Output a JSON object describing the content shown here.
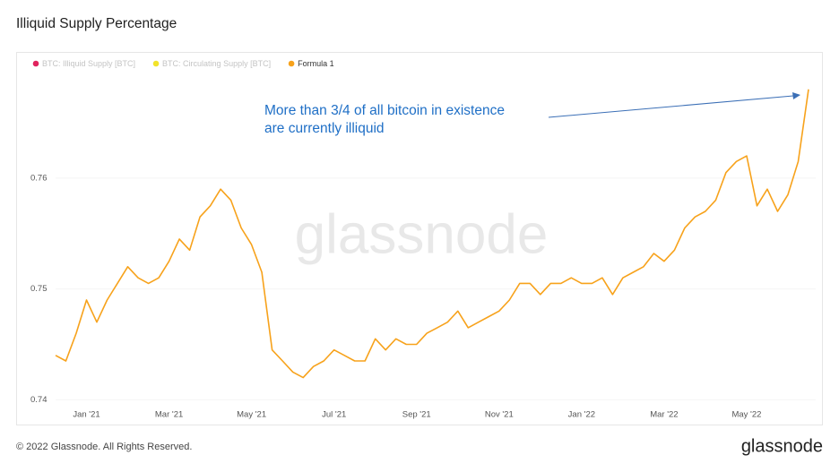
{
  "chart_data": {
    "type": "line",
    "title": "Illiquid Supply Percentage",
    "legend": [
      {
        "name": "BTC: Illiquid Supply [BTC]",
        "color": "#e0245e",
        "active": false
      },
      {
        "name": "BTC: Circulating Supply [BTC]",
        "color": "#f2e32b",
        "active": false
      },
      {
        "name": "Formula 1",
        "color": "#f7a21b",
        "active": true
      }
    ],
    "annotation": [
      "More than 3/4 of all bitcoin in existence",
      "are currently illiquid"
    ],
    "watermark": "glassnode",
    "footer": "© 2022 Glassnode. All Rights Reserved.",
    "logo": "glassnode",
    "categories": [
      null,
      null,
      null,
      "Jan '21",
      null,
      null,
      null,
      null,
      null,
      null,
      null,
      "Mar '21",
      null,
      null,
      null,
      null,
      null,
      null,
      null,
      "May '21",
      null,
      null,
      null,
      null,
      null,
      null,
      null,
      "Jul '21",
      null,
      null,
      null,
      null,
      null,
      null,
      null,
      "Sep '21",
      null,
      null,
      null,
      null,
      null,
      null,
      null,
      "Nov '21",
      null,
      null,
      null,
      null,
      null,
      null,
      null,
      "Jan '22",
      null,
      null,
      null,
      null,
      null,
      null,
      null,
      "Mar '22",
      null,
      null,
      null,
      null,
      null,
      null,
      null,
      "May '22",
      null,
      null,
      null,
      null,
      null,
      null
    ],
    "series": [
      {
        "color": "#f7a21b",
        "values": [
          0.744,
          0.7435,
          0.746,
          0.749,
          0.747,
          0.749,
          0.7505,
          0.752,
          0.751,
          0.7505,
          0.751,
          0.7525,
          0.7545,
          0.7535,
          0.7565,
          0.7575,
          0.759,
          0.758,
          0.7555,
          0.754,
          0.7515,
          0.7445,
          0.7435,
          0.7425,
          0.742,
          0.743,
          0.7435,
          0.7445,
          0.744,
          0.7435,
          0.7435,
          0.7455,
          0.7445,
          0.7455,
          0.745,
          0.745,
          0.746,
          0.7465,
          0.747,
          0.748,
          0.7465,
          0.747,
          0.7475,
          0.748,
          0.749,
          0.7505,
          0.7505,
          0.7495,
          0.7505,
          0.7505,
          0.751,
          0.7505,
          0.7505,
          0.751,
          0.7495,
          0.751,
          0.7515,
          0.752,
          0.7532,
          0.7525,
          0.7535,
          0.7555,
          0.7565,
          0.757,
          0.758,
          0.7605,
          0.7615,
          0.762,
          0.7575,
          0.759,
          0.757,
          0.7585,
          0.7615,
          0.768
        ]
      }
    ],
    "ylim": [
      0.7393,
      0.7692
    ],
    "yticks": [
      0.74,
      0.75,
      0.76
    ],
    "grid": true
  }
}
